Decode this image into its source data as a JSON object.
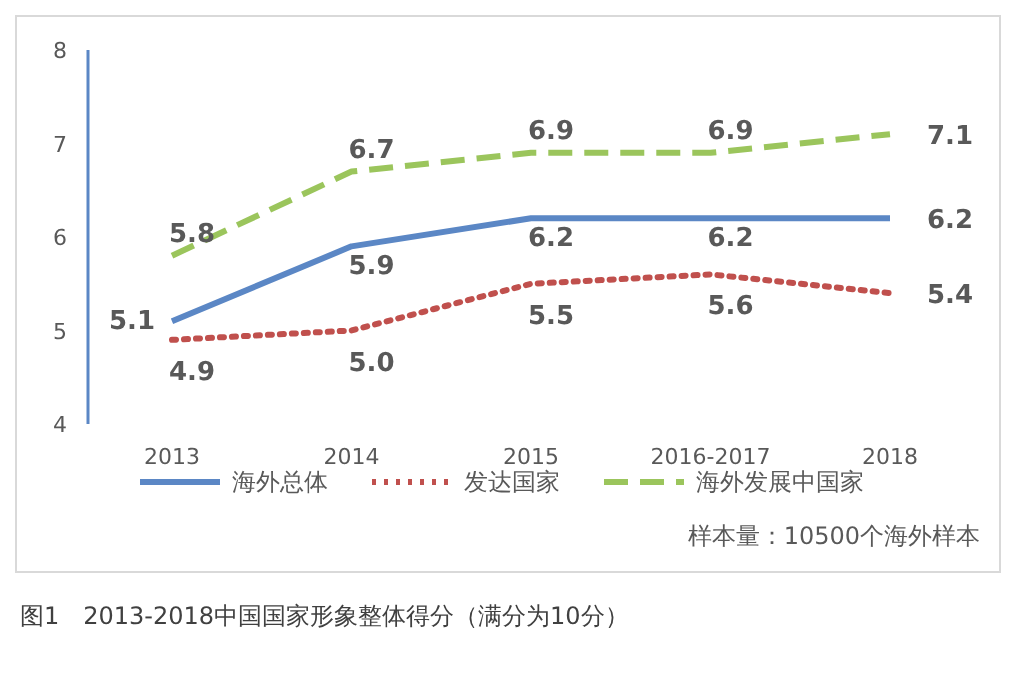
{
  "chart_data": {
    "type": "line",
    "categories": [
      "2013",
      "2014",
      "2015",
      "2016-2017",
      "2018"
    ],
    "series": [
      {
        "name": "海外总体",
        "color": "#5b87c5",
        "line_style": "solid",
        "values": [
          5.1,
          5.9,
          6.2,
          6.2,
          6.2
        ]
      },
      {
        "name": "发达国家",
        "color": "#c0504d",
        "line_style": "dotted",
        "values": [
          4.9,
          5.0,
          5.5,
          5.6,
          5.4
        ],
        "value_labels": [
          "4.9",
          "5.0",
          "5.5",
          "5.6",
          "5.4"
        ]
      },
      {
        "name": "海外发展中国家",
        "color": "#9bc55c",
        "line_style": "dashed",
        "values": [
          5.8,
          6.7,
          6.9,
          6.9,
          7.1
        ]
      }
    ],
    "ylim": [
      4,
      8
    ],
    "yticks": [
      4,
      5,
      6,
      7,
      8
    ],
    "grid": false,
    "legend": "bottom",
    "marker": "none",
    "data_labels": true,
    "annotations": [
      "样本量：10500个海外样本",
      "图1　2013-2018中国国家形象整体得分（满分为10分）"
    ]
  }
}
